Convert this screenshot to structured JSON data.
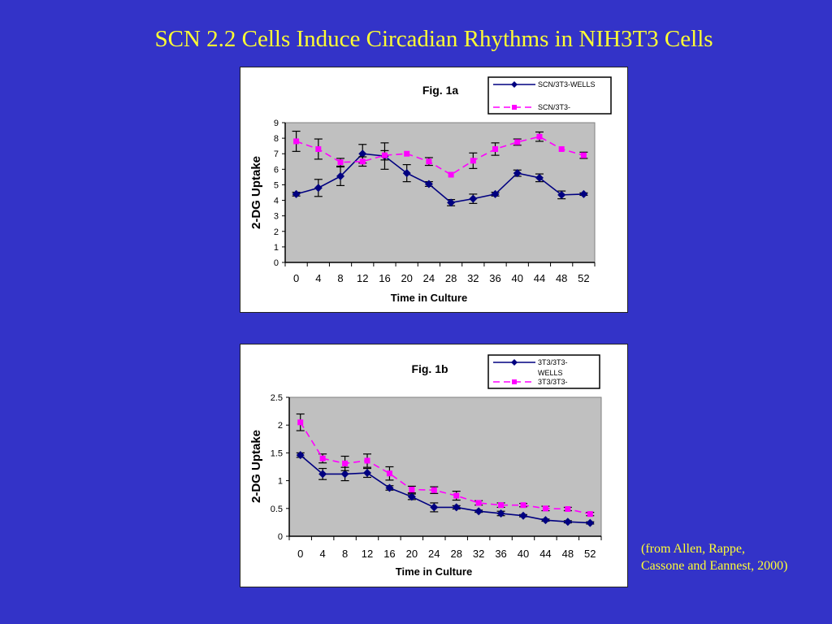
{
  "slide": {
    "title": "SCN 2.2 Cells Induce Circadian Rhythms in NIH3T3 Cells",
    "citation_line1": "(from Allen, Rappe,",
    "citation_line2": "Cassone and Eannest, 2000)",
    "colors": {
      "background": "#3333c8",
      "title": "#ffff33"
    }
  },
  "chart_data": [
    {
      "type": "line",
      "title": "Fig. 1a",
      "xlabel": "Time in Culture",
      "ylabel": "2-DG Uptake",
      "x": [
        0,
        4,
        8,
        12,
        16,
        20,
        24,
        28,
        32,
        36,
        40,
        44,
        48,
        52
      ],
      "categories": [
        "0",
        "4",
        "8",
        "12",
        "16",
        "20",
        "24",
        "28",
        "32",
        "36",
        "40",
        "44",
        "48",
        "52"
      ],
      "ylim": [
        0,
        9
      ],
      "yticks": [
        0,
        1,
        2,
        3,
        4,
        5,
        6,
        7,
        8,
        9
      ],
      "ytick_labels": [
        "0",
        "1",
        "2",
        "3",
        "4",
        "5",
        "6",
        "7",
        "8",
        "9"
      ],
      "grid": false,
      "legend_position": "top-right",
      "series": [
        {
          "name": "SCN/3T3-WELLS",
          "legend_lines": [
            "SCN/3T3-WELLS"
          ],
          "color": "#000080",
          "style": "solid",
          "marker": "diamond",
          "values": [
            4.4,
            4.8,
            5.55,
            7.0,
            6.85,
            5.75,
            5.05,
            3.85,
            4.1,
            4.4,
            5.75,
            5.45,
            4.35,
            4.4
          ],
          "errors": [
            0.12,
            0.55,
            0.6,
            0.6,
            0.85,
            0.55,
            0.15,
            0.2,
            0.3,
            0.12,
            0.2,
            0.25,
            0.25,
            0.08
          ]
        },
        {
          "name": "SCN/3T3-",
          "legend_lines": [
            "SCN/3T3-"
          ],
          "color": "#ff00ff",
          "style": "dashed",
          "marker": "square",
          "values": [
            7.8,
            7.3,
            6.45,
            6.5,
            6.9,
            7.0,
            6.5,
            5.65,
            6.55,
            7.3,
            7.75,
            8.1,
            7.3,
            6.9
          ],
          "errors": [
            0.65,
            0.65,
            0.25,
            0.3,
            0.3,
            0.0,
            0.25,
            0.0,
            0.5,
            0.4,
            0.2,
            0.3,
            0.0,
            0.2
          ]
        }
      ]
    },
    {
      "type": "line",
      "title": "Fig. 1b",
      "xlabel": "Time in Culture",
      "ylabel": "2-DG Uptake",
      "x": [
        0,
        4,
        8,
        12,
        16,
        20,
        24,
        28,
        32,
        36,
        40,
        44,
        48,
        52
      ],
      "categories": [
        "0",
        "4",
        "8",
        "12",
        "16",
        "20",
        "24",
        "28",
        "32",
        "36",
        "40",
        "44",
        "48",
        "52"
      ],
      "ylim": [
        0,
        2.5
      ],
      "yticks": [
        0,
        0.5,
        1,
        1.5,
        2,
        2.5
      ],
      "ytick_labels": [
        "0",
        "0.5",
        "1",
        "1.5",
        "2",
        "2.5"
      ],
      "grid": false,
      "legend_position": "top-right",
      "series": [
        {
          "name": "3T3/3T3-WELLS",
          "legend_lines": [
            "3T3/3T3-",
            "WELLS"
          ],
          "color": "#000080",
          "style": "solid",
          "marker": "diamond",
          "values": [
            1.46,
            1.12,
            1.12,
            1.14,
            0.87,
            0.71,
            0.52,
            0.52,
            0.45,
            0.41,
            0.37,
            0.29,
            0.26,
            0.24
          ],
          "errors": [
            0.04,
            0.1,
            0.12,
            0.08,
            0.04,
            0.05,
            0.08,
            0.03,
            0.02,
            0.04,
            0.02,
            0.02,
            0.02,
            0.02
          ]
        },
        {
          "name": "3T3/3T3-",
          "legend_lines": [
            "3T3/3T3-"
          ],
          "color": "#ff00ff",
          "style": "dashed",
          "marker": "square",
          "values": [
            2.05,
            1.4,
            1.31,
            1.36,
            1.13,
            0.84,
            0.83,
            0.73,
            0.6,
            0.56,
            0.56,
            0.5,
            0.49,
            0.4
          ],
          "errors": [
            0.15,
            0.08,
            0.13,
            0.12,
            0.12,
            0.06,
            0.06,
            0.08,
            0.04,
            0.04,
            0.03,
            0.04,
            0.03,
            0.03
          ]
        }
      ]
    }
  ]
}
